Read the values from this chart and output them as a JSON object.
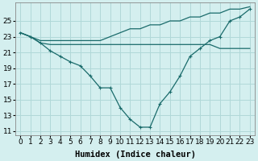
{
  "xlabel": "Humidex (Indice chaleur)",
  "bg_color": "#d4efef",
  "grid_color": "#b0d8d8",
  "line_color": "#1a6b6b",
  "x": [
    0,
    1,
    2,
    3,
    4,
    5,
    6,
    7,
    8,
    9,
    10,
    11,
    12,
    13,
    14,
    15,
    16,
    17,
    18,
    19,
    20,
    21,
    22,
    23
  ],
  "line_marked": [
    23.5,
    23.0,
    22.2,
    21.2,
    20.5,
    19.8,
    19.3,
    18.0,
    16.5,
    16.5,
    14.0,
    12.5,
    11.5,
    11.5,
    14.5,
    16.0,
    18.0,
    20.5,
    21.5,
    22.5,
    23.0,
    25.0,
    25.5,
    26.5
  ],
  "line_flat_lower": [
    23.5,
    23.0,
    22.2,
    22.0,
    22.0,
    22.0,
    22.0,
    22.0,
    22.0,
    22.0,
    22.0,
    22.0,
    22.0,
    22.0,
    22.0,
    22.0,
    22.0,
    22.0,
    22.0,
    22.0,
    21.5,
    21.5,
    21.5,
    21.5
  ],
  "line_upper": [
    23.5,
    23.0,
    22.5,
    22.5,
    22.5,
    22.5,
    22.5,
    22.5,
    22.5,
    23.0,
    23.5,
    24.0,
    24.0,
    24.5,
    24.5,
    25.0,
    25.0,
    25.5,
    25.5,
    26.0,
    26.0,
    26.5,
    26.5,
    26.8
  ],
  "yticks": [
    11,
    13,
    15,
    17,
    19,
    21,
    23,
    25
  ],
  "ylim": [
    10.5,
    27.3
  ],
  "xlim": [
    -0.5,
    23.5
  ],
  "xlabel_fontsize": 7.5,
  "tick_fontsize": 6.5
}
